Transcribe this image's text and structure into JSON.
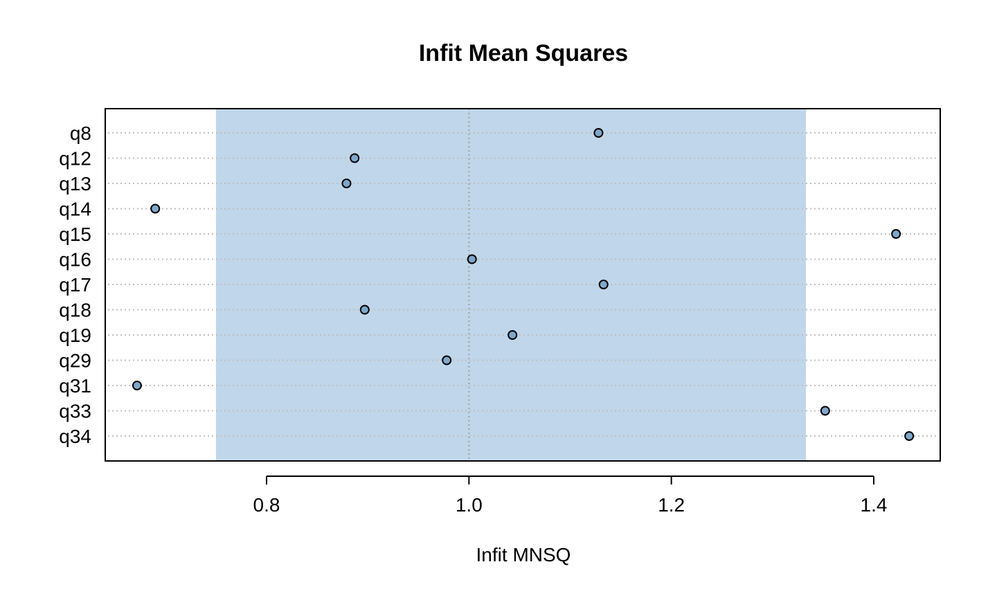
{
  "chart_data": {
    "type": "scatter",
    "title": "Infit Mean Squares",
    "xlabel": "Infit MNSQ",
    "ylabel": "",
    "xlim": [
      0.65,
      1.465
    ],
    "xticks": [
      0.8,
      1.0,
      1.2,
      1.4
    ],
    "xtick_labels": [
      "0.8",
      "1.0",
      "1.2",
      "1.4"
    ],
    "acceptable_range": [
      0.75,
      1.333
    ],
    "reference_line": 1.0,
    "grid": "horizontal dotted per item",
    "categories": [
      "q8",
      "q12",
      "q13",
      "q14",
      "q15",
      "q16",
      "q17",
      "q18",
      "q19",
      "q29",
      "q31",
      "q33",
      "q34"
    ],
    "values": [
      1.128,
      0.887,
      0.879,
      0.69,
      1.422,
      1.003,
      1.133,
      0.897,
      1.043,
      0.978,
      0.672,
      1.352,
      1.435
    ],
    "colors": {
      "band": "#c0d6ea",
      "point_fill": "#7ea7cb",
      "point_stroke": "#000000",
      "grid": "#bfbfbf",
      "refline": "#a0a0a0"
    }
  }
}
